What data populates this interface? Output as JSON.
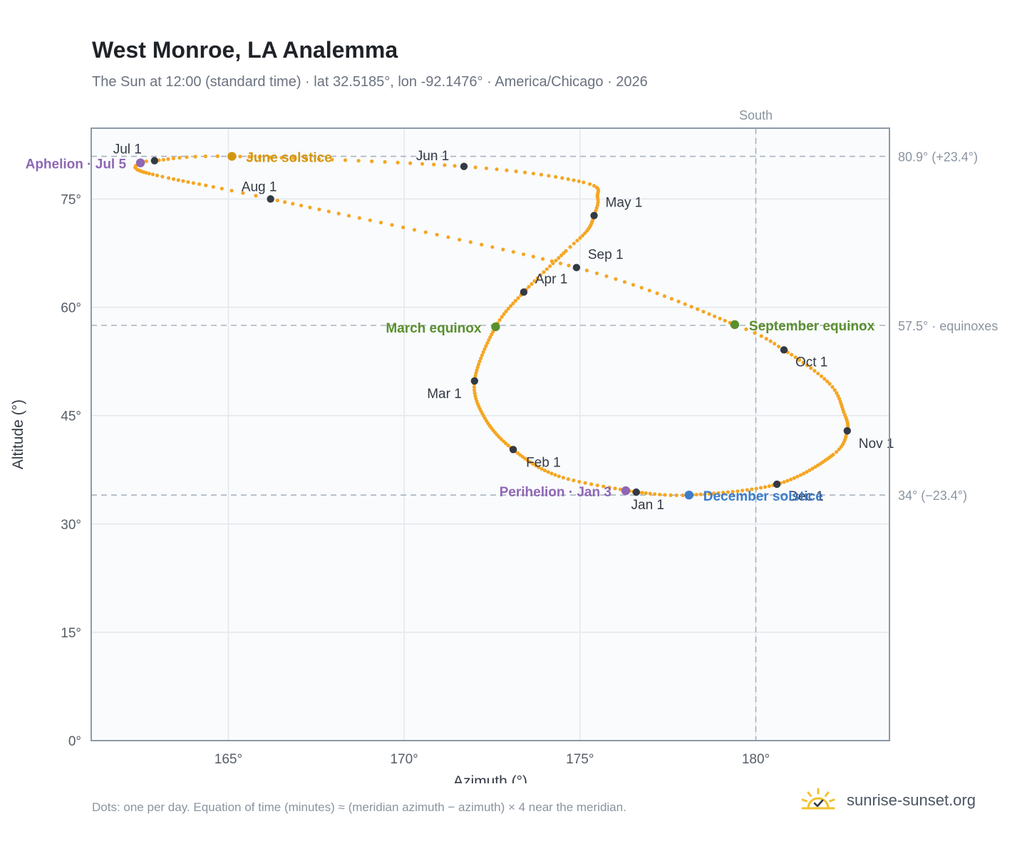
{
  "header": {
    "title": "West Monroe, LA Analemma",
    "subtitle": "The Sun at 12:00 (standard time) · lat 32.5185°, lon -92.1476° · America/Chicago · 2026"
  },
  "footer": {
    "note": "Dots: one per day. Equation of time (minutes) ≈ (meridian azimuth − azimuth) × 4 near the meridian.",
    "brand": "sunrise-sunset.org",
    "brand_icon": "sunrise-logo-icon"
  },
  "colors": {
    "path": "#f5a623",
    "month_dot": "#333a44",
    "equinox": "#5a8f2e",
    "june_solstice": "#d4960f",
    "december_solstice": "#3d7cc9",
    "apsis": "#8e67b5",
    "ref_line": "#a8b4be",
    "plot_bg": "#fafbfd",
    "grid": "#e3e7ec",
    "frame": "#8d99a6"
  },
  "chart_data": {
    "type": "scatter",
    "xlabel": "Azimuth (°)",
    "ylabel": "Altitude (°)",
    "xlim": [
      161.1,
      183.8
    ],
    "ylim": [
      0,
      84.8
    ],
    "xticks": [
      165,
      170,
      175,
      180
    ],
    "xtick_labels": [
      "165°",
      "170°",
      "175°",
      "180°"
    ],
    "yticks": [
      0,
      15,
      30,
      45,
      60,
      75
    ],
    "ytick_labels": [
      "0°",
      "15°",
      "30°",
      "45°",
      "60°",
      "75°"
    ],
    "grid": true,
    "south_line": {
      "x": 180,
      "label": "South"
    },
    "ref_lines": [
      {
        "y": 80.9,
        "label": "80.9° (+23.4°)"
      },
      {
        "y": 57.5,
        "label": "57.5° · equinoxes"
      },
      {
        "y": 34,
        "label": "34° (−23.4°)"
      }
    ],
    "month_markers": [
      {
        "label": "Jan 1",
        "az": 176.6,
        "alt": 34.4
      },
      {
        "label": "Feb 1",
        "az": 173.1,
        "alt": 40.3
      },
      {
        "label": "Mar 1",
        "az": 172.0,
        "alt": 49.8
      },
      {
        "label": "Apr 1",
        "az": 173.4,
        "alt": 62.1
      },
      {
        "label": "May 1",
        "az": 175.4,
        "alt": 72.7
      },
      {
        "label": "Jun 1",
        "az": 171.7,
        "alt": 79.5
      },
      {
        "label": "Jul 1",
        "az": 162.9,
        "alt": 80.3
      },
      {
        "label": "Aug 1",
        "az": 166.2,
        "alt": 75.0
      },
      {
        "label": "Sep 1",
        "az": 174.9,
        "alt": 65.5
      },
      {
        "label": "Oct 1",
        "az": 180.8,
        "alt": 54.1
      },
      {
        "label": "Nov 1",
        "az": 182.6,
        "alt": 42.9
      },
      {
        "label": "Dec 1",
        "az": 180.6,
        "alt": 35.5
      }
    ],
    "events": [
      {
        "label": "March equinox",
        "az": 172.6,
        "alt": 57.3,
        "kind": "equinox"
      },
      {
        "label": "June solstice",
        "az": 165.1,
        "alt": 80.9,
        "kind": "june_solstice"
      },
      {
        "label": "September equinox",
        "az": 179.4,
        "alt": 57.6,
        "kind": "equinox"
      },
      {
        "label": "December solstice",
        "az": 178.1,
        "alt": 34.0,
        "kind": "december_solstice"
      },
      {
        "label": "Perihelion · Jan 3",
        "az": 176.3,
        "alt": 34.6,
        "kind": "apsis"
      },
      {
        "label": "Aphelion · Jul 5",
        "az": 162.5,
        "alt": 80.0,
        "kind": "apsis"
      }
    ],
    "path_waypoints": [
      {
        "day": 1,
        "az": 176.6,
        "alt": 34.4
      },
      {
        "day": 16,
        "az": 174.4,
        "alt": 36.6
      },
      {
        "day": 32,
        "az": 173.1,
        "alt": 40.3
      },
      {
        "day": 46,
        "az": 172.3,
        "alt": 44.6
      },
      {
        "day": 60,
        "az": 172.0,
        "alt": 49.8
      },
      {
        "day": 79,
        "az": 172.6,
        "alt": 57.3
      },
      {
        "day": 91,
        "az": 173.4,
        "alt": 62.1
      },
      {
        "day": 106,
        "az": 174.6,
        "alt": 67.8
      },
      {
        "day": 113,
        "az": 175.2,
        "alt": 70.6
      },
      {
        "day": 121,
        "az": 175.4,
        "alt": 72.7
      },
      {
        "day": 128,
        "az": 175.5,
        "alt": 75.2
      },
      {
        "day": 137,
        "az": 175.1,
        "alt": 77.3
      },
      {
        "day": 152,
        "az": 171.7,
        "alt": 79.5
      },
      {
        "day": 172,
        "az": 165.1,
        "alt": 80.9
      },
      {
        "day": 182,
        "az": 162.9,
        "alt": 80.3
      },
      {
        "day": 186,
        "az": 162.5,
        "alt": 80.0
      },
      {
        "day": 190,
        "az": 162.4,
        "alt": 79.1
      },
      {
        "day": 200,
        "az": 163.3,
        "alt": 77.9
      },
      {
        "day": 213,
        "az": 166.2,
        "alt": 75.0
      },
      {
        "day": 244,
        "az": 174.9,
        "alt": 65.5
      },
      {
        "day": 266,
        "az": 179.4,
        "alt": 57.6
      },
      {
        "day": 274,
        "az": 180.8,
        "alt": 54.1
      },
      {
        "day": 287,
        "az": 182.1,
        "alt": 49.4
      },
      {
        "day": 297,
        "az": 182.5,
        "alt": 45.5
      },
      {
        "day": 305,
        "az": 182.6,
        "alt": 42.9
      },
      {
        "day": 315,
        "az": 182.2,
        "alt": 39.6
      },
      {
        "day": 335,
        "az": 180.6,
        "alt": 35.5
      },
      {
        "day": 355,
        "az": 178.1,
        "alt": 34.0
      },
      {
        "day": 366,
        "az": 176.6,
        "alt": 34.4
      }
    ]
  }
}
